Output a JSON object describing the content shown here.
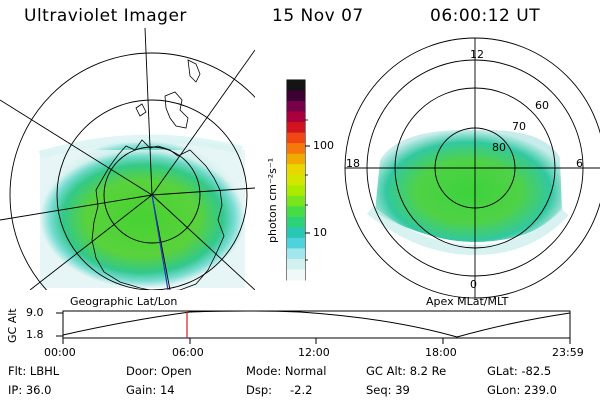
{
  "header": {
    "title": "Ultraviolet Imager",
    "date": "15 Nov 07",
    "time": "06:00:12 UT"
  },
  "colorbar": {
    "unit_label": "photon cm⁻²s⁻¹",
    "ticks": [
      "100",
      "10"
    ],
    "colors": [
      "#141414",
      "#3c0032",
      "#78004b",
      "#aa003c",
      "#d2141e",
      "#f04614",
      "#f5780a",
      "#f0aa00",
      "#ebd700",
      "#d2e600",
      "#aaeb00",
      "#78e61e",
      "#46dc46",
      "#2dd278",
      "#28c8b4",
      "#50d2dc",
      "#a0e6ec",
      "#d2f0f0",
      "#f0f8f8"
    ]
  },
  "geo_panel": {
    "caption": "Geographic Lat/Lon"
  },
  "mag_panel": {
    "caption": "Apex MLat/MLT",
    "lat_labels": [
      "60",
      "70",
      "80"
    ],
    "mlt_labels": {
      "top": "12",
      "left": "18",
      "right": "6",
      "bottom": "0"
    }
  },
  "altitude_plot": {
    "ylabel": "GC Alt",
    "yticks": [
      "9.0",
      "1.8"
    ],
    "xticks": [
      "00:00",
      "06:00",
      "12:00",
      "18:00",
      "23:59"
    ],
    "marker_time": "06:00:12"
  },
  "footer": {
    "filter": "Flt: LBHL",
    "ip": "IP: 36.0",
    "door": "Door: Open",
    "gain": "Gain: 14",
    "mode": "Mode: Normal",
    "dsp_label": "Dsp:",
    "dsp_value": "-2.2",
    "gc_alt": "GC Alt: 8.2 Re",
    "seq": "Seq: 39",
    "glat": "GLat: -82.5",
    "glon": "GLon: 239.0"
  }
}
